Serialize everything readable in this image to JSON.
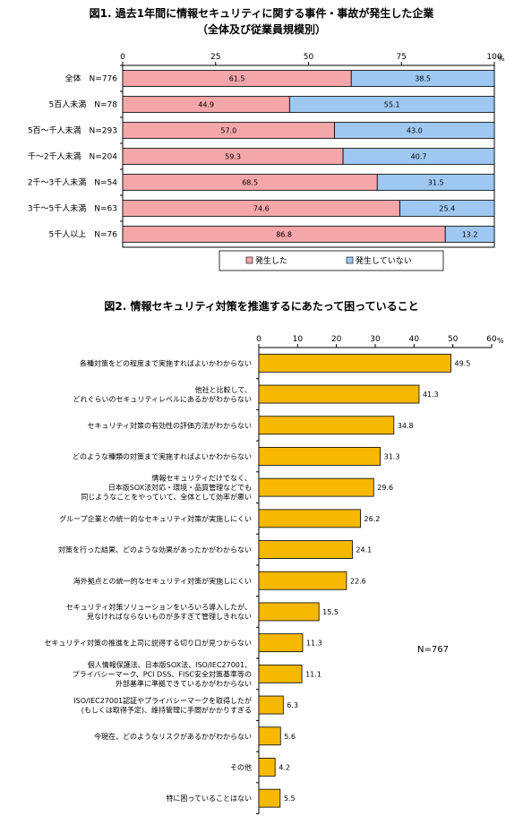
{
  "chart_data": [
    {
      "type": "bar",
      "stacked": true,
      "orientation": "horizontal",
      "title": "図1. 過去1年間に情報セキュリティに関する事件・事故が発生した企業",
      "subtitle": "（全体及び従業員規模別）",
      "xlim": [
        0,
        100
      ],
      "ticks": [
        "0",
        "25",
        "50",
        "75",
        "100"
      ],
      "unit": "%",
      "categories": [
        "全体　N=776",
        "5百人未満　N=78",
        "5百～千人未満　N=293",
        "千～2千人未満　N=204",
        "2千～3千人未満　N=54",
        "3千～5千人未満　N=63",
        "5千人以上　N=76"
      ],
      "series": [
        {
          "name": "発生した",
          "values": [
            61.5,
            44.9,
            57.0,
            59.3,
            68.5,
            74.6,
            86.8
          ],
          "labels": [
            "61.5",
            "44.9",
            "57.0",
            "59.3",
            "68.5",
            "74.6",
            "86.8"
          ],
          "color": "#f4a6a9"
        },
        {
          "name": "発生していない",
          "values": [
            38.5,
            55.1,
            43.0,
            40.7,
            31.5,
            25.4,
            13.2
          ],
          "labels": [
            "38.5",
            "55.1",
            "43.0",
            "40.7",
            "31.5",
            "25.4",
            "13.2"
          ],
          "color": "#9ec8f2"
        }
      ],
      "legend": "bottom"
    },
    {
      "type": "bar",
      "orientation": "horizontal",
      "title": "図2. 情報セキュリティ対策を推進するにあたって困っていること",
      "xlim": [
        0,
        60
      ],
      "ticks": [
        "0",
        "10",
        "20",
        "30",
        "40",
        "50",
        "60"
      ],
      "unit": "%",
      "annotation": "N=767",
      "categories": [
        [
          "各種対策をどの程度まで実施すればよいかわからない"
        ],
        [
          "他社と比較して、",
          "どれぐらいのセキュリティレベルにあるかがわからない"
        ],
        [
          "セキュリティ対策の有効性の評価方法がわからない"
        ],
        [
          "どのような種類の対策まで実施すればよいかわからない"
        ],
        [
          "情報セキュリティだけでなく、",
          "日本版SOX法対応・環境・品質管理などでも",
          "同じようなことをやっていて、全体として効率が悪い"
        ],
        [
          "グループ企業との統一的なセキュリティ対策が実施しにくい"
        ],
        [
          "対策を行った結果、どのような効果があったかがわからない"
        ],
        [
          "海外拠点との統一的なセキュリティ対策が実施しにくい"
        ],
        [
          "セキュリティ対策ソリューションをいろいろ導入したが、",
          "見なければならないものが多すぎて管理しきれない"
        ],
        [
          "セキュリティ対策の推進を上司に説得する切り口が見つからない"
        ],
        [
          "個人情報保護法、日本版SOX法、ISO/IEC27001、",
          "プライバシーマーク、PCI DSS、FISC安全対策基準等の",
          "外部基準に準拠できているかがわからない"
        ],
        [
          "ISO/IEC27001認証やプライバシーマークを取得したが",
          "(もしくは取得予定)、維持管理に手間がかかりすぎる"
        ],
        [
          "今現在、どのようなリスクがあるかがわからない"
        ],
        [
          "その他"
        ],
        [
          "特に困っていることはない"
        ]
      ],
      "values": [
        49.5,
        41.3,
        34.8,
        31.3,
        29.6,
        26.2,
        24.1,
        22.6,
        15.5,
        11.3,
        11.1,
        6.3,
        5.6,
        4.2,
        5.5
      ],
      "labels": [
        "49.5",
        "41.3",
        "34.8",
        "31.3",
        "29.6",
        "26.2",
        "24.1",
        "22.6",
        "15.5",
        "11.3",
        "11.1",
        "6.3",
        "5.6",
        "4.2",
        "5.5"
      ],
      "color": "#f6b800"
    }
  ]
}
